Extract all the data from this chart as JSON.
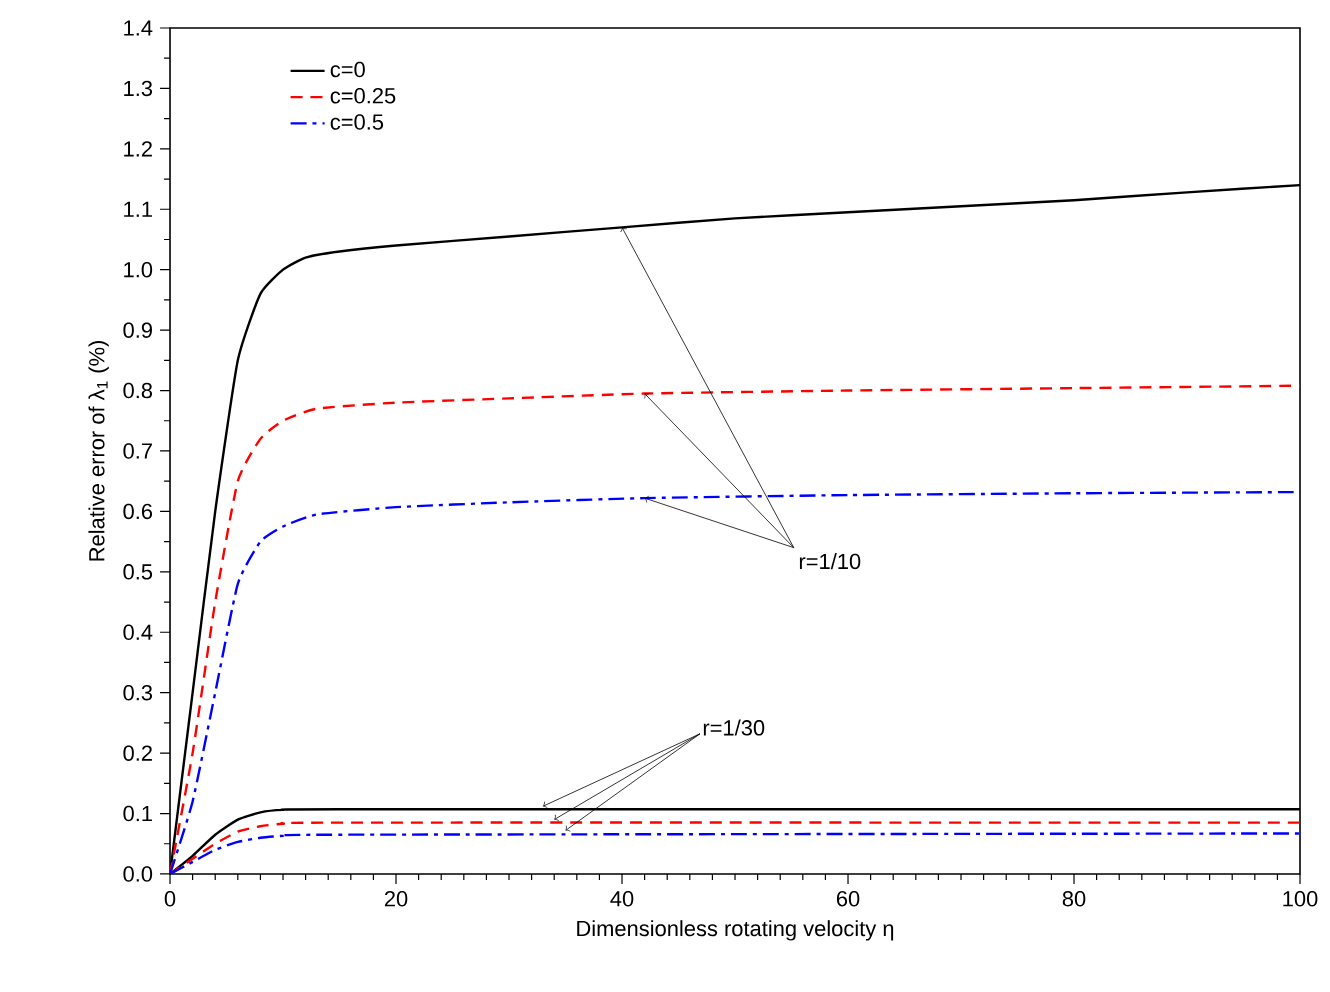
{
  "chart_data": {
    "type": "line",
    "xlabel": "Dimensionless rotating velocity η",
    "ylabel": "Relative error of λ$_{1}$ (%)",
    "series": [
      {
        "name": "c=0",
        "color": "#000000",
        "line_style": "solid",
        "x": [
          0,
          2,
          4,
          6,
          8,
          10,
          12,
          15,
          20,
          30,
          40,
          50,
          60,
          70,
          80,
          90,
          100
        ],
        "values": [
          0,
          0.3,
          0.6,
          0.85,
          0.96,
          1.0,
          1.02,
          1.03,
          1.04,
          1.055,
          1.07,
          1.085,
          1.095,
          1.105,
          1.115,
          1.128,
          1.14
        ]
      },
      {
        "name": "c=0.25",
        "color": "#ff0000",
        "line_style": "dashed",
        "x": [
          0,
          2,
          4,
          6,
          8,
          10,
          13,
          20,
          30,
          42,
          60,
          80,
          100
        ],
        "values": [
          0,
          0.2,
          0.45,
          0.65,
          0.72,
          0.75,
          0.77,
          0.78,
          0.787,
          0.795,
          0.8,
          0.804,
          0.808
        ]
      },
      {
        "name": "c=0.5",
        "color": "#0000ff",
        "line_style": "dashdot",
        "x": [
          0,
          2,
          4,
          6,
          8,
          10,
          13,
          20,
          30,
          42,
          60,
          80,
          100
        ],
        "values": [
          0,
          0.12,
          0.3,
          0.48,
          0.55,
          0.575,
          0.595,
          0.607,
          0.615,
          0.622,
          0.627,
          0.63,
          0.632
        ]
      },
      {
        "color": "#000000",
        "line_style": "solid",
        "x": [
          0,
          2,
          4,
          6,
          8,
          10,
          15,
          100
        ],
        "values": [
          0,
          0.03,
          0.065,
          0.09,
          0.102,
          0.106,
          0.107,
          0.107
        ]
      },
      {
        "color": "#ff0000",
        "line_style": "dashed",
        "x": [
          0,
          2,
          4,
          6,
          8,
          10,
          15,
          100
        ],
        "values": [
          0,
          0.025,
          0.05,
          0.07,
          0.079,
          0.083,
          0.085,
          0.085
        ]
      },
      {
        "color": "#0000ff",
        "line_style": "dashdot",
        "x": [
          0,
          2,
          4,
          6,
          8,
          10,
          15,
          100
        ],
        "values": [
          0,
          0.02,
          0.04,
          0.053,
          0.06,
          0.063,
          0.065,
          0.067
        ]
      }
    ],
    "annotations": [
      {
        "text": "r=1/10",
        "x": 42,
        "y": 0.795
      },
      {
        "text": "r=1/30",
        "x": 34,
        "y": 0.085
      }
    ],
    "xlim": [
      0,
      100
    ],
    "xticks": [
      0,
      20,
      40,
      60,
      80,
      100
    ],
    "ylim": [
      0,
      1.4
    ],
    "yticks": [
      {
        "value": 0,
        "label": "0.0"
      },
      0.1,
      0.2,
      0.3,
      0.4,
      0.5,
      0.6,
      0.7,
      0.8,
      0.9,
      {
        "value": 1,
        "label": "1.0"
      },
      1.1,
      1.2,
      1.3,
      1.4
    ],
    "grid": false,
    "legend": "top left"
  }
}
